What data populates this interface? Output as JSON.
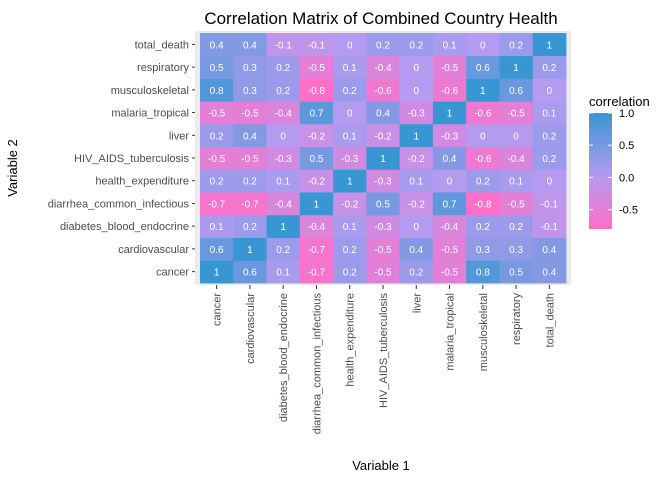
{
  "chart_data": {
    "type": "heatmap",
    "title": "Correlation Matrix of Combined Country Health",
    "xlabel": "Variable 1",
    "ylabel": "Variable 2",
    "variables": [
      "cancer",
      "cardiovascular",
      "diabetes_blood_endocrine",
      "diarrhea_common_infectious",
      "health_expenditure",
      "HIV_AIDS_tuberculosis",
      "liver",
      "malaria_tropical",
      "musculoskeletal",
      "respiratory",
      "total_death"
    ],
    "matrix": [
      [
        "1",
        "0.6",
        "0.1",
        "-0.7",
        "0.2",
        "-0.5",
        "0.2",
        "-0.5",
        "0.8",
        "0.5",
        "0.4"
      ],
      [
        "0.6",
        "1",
        "0.2",
        "-0.7",
        "0.2",
        "-0.5",
        "0.4",
        "-0.5",
        "0.3",
        "0.3",
        "0.4"
      ],
      [
        "0.1",
        "0.2",
        "1",
        "-0.4",
        "0.1",
        "-0.3",
        "0",
        "-0.4",
        "0.2",
        "0.2",
        "-0.1"
      ],
      [
        "-0.7",
        "-0.7",
        "-0.4",
        "1",
        "-0.2",
        "0.5",
        "-0.2",
        "0.7",
        "-0.8",
        "-0.5",
        "-0.1"
      ],
      [
        "0.2",
        "0.2",
        "0.1",
        "-0.2",
        "1",
        "-0.3",
        "0.1",
        "0",
        "0.2",
        "0.1",
        "0"
      ],
      [
        "-0.5",
        "-0.5",
        "-0.3",
        "0.5",
        "-0.3",
        "1",
        "-0.2",
        "0.4",
        "-0.6",
        "-0.4",
        "0.2"
      ],
      [
        "0.2",
        "0.4",
        "0",
        "-0.2",
        "0.1",
        "-0.2",
        "1",
        "-0.3",
        "0",
        "0",
        "0.2"
      ],
      [
        "-0.5",
        "-0.5",
        "-0.4",
        "0.7",
        "0",
        "0.4",
        "-0.3",
        "1",
        "-0.6",
        "-0.5",
        "0.1"
      ],
      [
        "0.8",
        "0.3",
        "0.2",
        "-0.8",
        "0.2",
        "-0.6",
        "0",
        "-0.6",
        "1",
        "0.6",
        "0"
      ],
      [
        "0.5",
        "0.3",
        "0.2",
        "-0.5",
        "0.1",
        "-0.4",
        "0",
        "-0.5",
        "0.6",
        "1",
        "0.2"
      ],
      [
        "0.4",
        "0.4",
        "-0.1",
        "-0.1",
        "0",
        "0.2",
        "0.2",
        "0.1",
        "0",
        "0.2",
        "1"
      ]
    ],
    "legend": {
      "title": "correlation",
      "ticks": [
        "1.0",
        "0.5",
        "0.0",
        "-0.5"
      ],
      "tick_values": [
        1.0,
        0.5,
        0.0,
        -0.5
      ],
      "range": [
        -0.8,
        1.0
      ],
      "colors": {
        "low": "#ff6ec7",
        "mid": "#b59bf0",
        "high": "#3896d3"
      }
    },
    "background": "#ebebeb",
    "grid": true,
    "legend_position": "right"
  }
}
